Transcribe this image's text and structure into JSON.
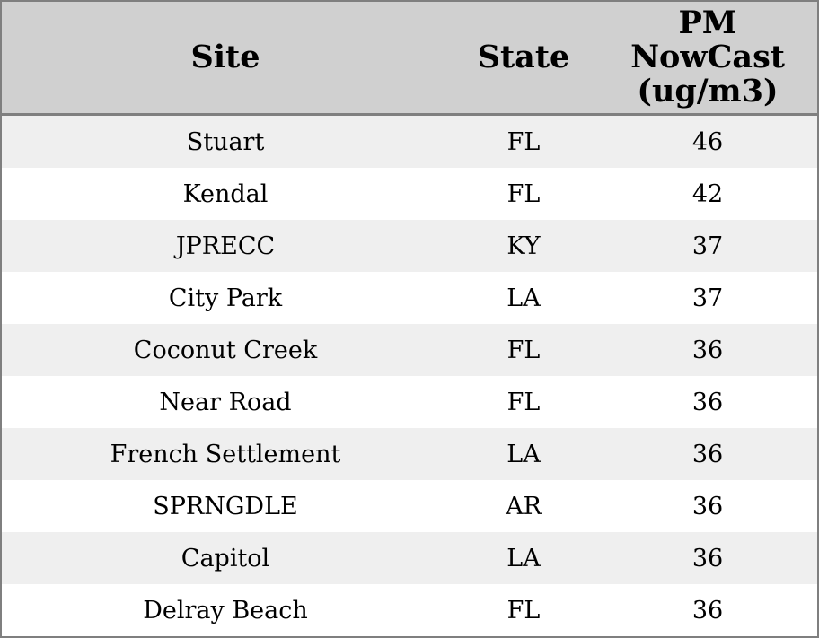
{
  "colors": {
    "border": "#7f7f7f",
    "header-bg": "#d0d0d0",
    "row-odd-bg": "#efefef",
    "row-even-bg": "#ffffff",
    "text": "#000000"
  },
  "chart_data": {
    "type": "table",
    "columns": [
      "Site",
      "State",
      "PM NowCast (ug/m3)"
    ],
    "header_display": {
      "site": "Site",
      "state": "State",
      "pm": "PM\nNowCast\n(ug/m3)"
    },
    "rows": [
      {
        "site": "Stuart",
        "state": "FL",
        "pm": 46
      },
      {
        "site": "Kendal",
        "state": "FL",
        "pm": 42
      },
      {
        "site": "JPRECC",
        "state": "KY",
        "pm": 37
      },
      {
        "site": "City Park",
        "state": "LA",
        "pm": 37
      },
      {
        "site": "Coconut Creek",
        "state": "FL",
        "pm": 36
      },
      {
        "site": "Near Road",
        "state": "FL",
        "pm": 36
      },
      {
        "site": "French Settlement",
        "state": "LA",
        "pm": 36
      },
      {
        "site": "SPRNGDLE",
        "state": "AR",
        "pm": 36
      },
      {
        "site": "Capitol",
        "state": "LA",
        "pm": 36
      },
      {
        "site": "Delray Beach",
        "state": "FL",
        "pm": 36
      }
    ]
  }
}
